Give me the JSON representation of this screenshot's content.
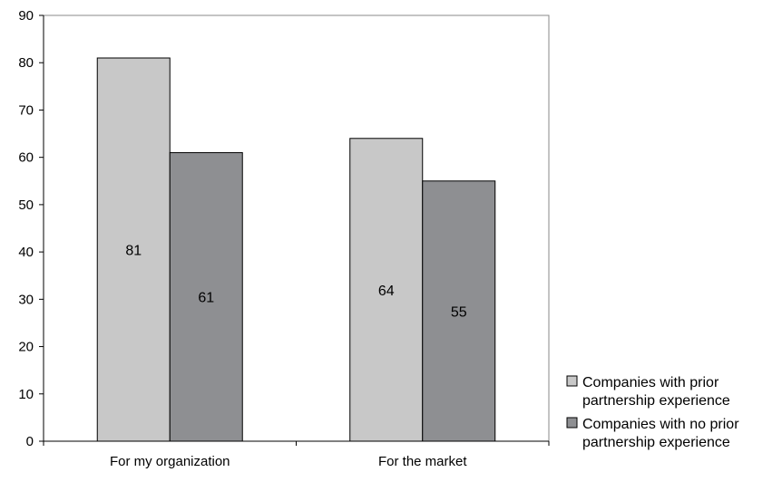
{
  "chart_data": {
    "type": "bar",
    "categories": [
      "For my organization",
      "For the market"
    ],
    "series": [
      {
        "name": "Companies with prior partnership experience",
        "values": [
          81,
          64
        ],
        "color": "#c8c8c8"
      },
      {
        "name": "Companies with no prior partnership experience",
        "values": [
          61,
          55
        ],
        "color": "#8e8f92"
      }
    ],
    "ylim": [
      0,
      90
    ],
    "yticks": [
      "0",
      "10",
      "20",
      "30",
      "40",
      "50",
      "60",
      "70",
      "80",
      "90"
    ],
    "grid": false,
    "legend": {
      "position": "right",
      "entries": [
        {
          "lines": [
            "Companies with prior",
            "partnership experience"
          ]
        },
        {
          "lines": [
            "Companies with no prior",
            "partnership experience"
          ]
        }
      ]
    },
    "data_labels": true
  },
  "colors": {
    "axis": "#000000",
    "bar_stroke": "#000000",
    "background": "#ffffff"
  }
}
